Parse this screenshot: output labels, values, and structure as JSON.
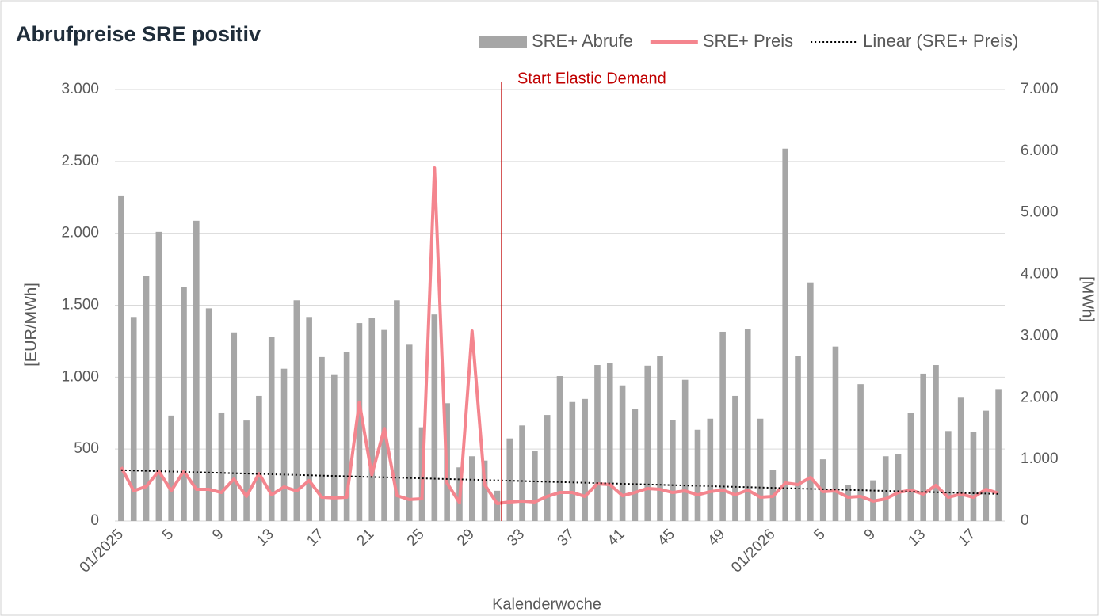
{
  "chart_data": {
    "type": "bar-line",
    "title": "Abrufpreise SRE positiv",
    "x_label": "Kalenderwoche",
    "y_label": "[EUR/MWh]",
    "y2_label": "[MWh]",
    "annotation": "Start Elastic Demand",
    "categories": [
      "01/2025",
      null,
      null,
      null,
      "5",
      null,
      null,
      null,
      "9",
      null,
      null,
      null,
      "13",
      null,
      null,
      null,
      "17",
      null,
      null,
      null,
      "21",
      null,
      null,
      null,
      "25",
      null,
      null,
      null,
      "29",
      null,
      null,
      null,
      "33",
      null,
      null,
      null,
      "37",
      null,
      null,
      null,
      "41",
      null,
      null,
      null,
      "45",
      null,
      null,
      null,
      "49",
      null,
      null,
      null,
      "01/2026",
      null,
      null,
      null,
      "5",
      null,
      null,
      null,
      "9",
      null,
      null,
      null,
      "13",
      null,
      null,
      null,
      "17",
      null,
      null
    ],
    "series": [
      {
        "name": "SRE+ Abrufe",
        "type": "bar",
        "axis": "y2",
        "color": "#a6a6a6",
        "values": [
          5280,
          3310,
          3980,
          4690,
          1710,
          3790,
          4870,
          3450,
          1760,
          3060,
          1630,
          2030,
          2990,
          2470,
          3580,
          3310,
          2660,
          2380,
          2740,
          3210,
          3300,
          3100,
          3580,
          2860,
          1520,
          3350,
          1910,
          870,
          1050,
          980,
          490,
          1340,
          1550,
          1130,
          1720,
          2350,
          1930,
          1980,
          2530,
          2560,
          2200,
          1820,
          2520,
          2680,
          1640,
          2290,
          1480,
          1660,
          3070,
          2030,
          3110,
          1660,
          830,
          6040,
          2680,
          3870,
          1000,
          2830,
          590,
          2220,
          660,
          1050,
          1080,
          1750,
          2390,
          2530,
          1460,
          2000,
          1440,
          1790,
          2140
        ]
      },
      {
        "name": "SRE+ Preis",
        "type": "line",
        "color": "#f4858e",
        "values": [
          374,
          210,
          240,
          347,
          210,
          347,
          220,
          220,
          198,
          292,
          171,
          330,
          182,
          237,
          209,
          281,
          165,
          160,
          165,
          826,
          320,
          644,
          176,
          149,
          154,
          2455,
          264,
          127,
          1321,
          253,
          121,
          132,
          138,
          132,
          171,
          198,
          198,
          171,
          259,
          253,
          176,
          198,
          226,
          220,
          198,
          209,
          182,
          204,
          215,
          182,
          215,
          165,
          171,
          264,
          253,
          303,
          204,
          209,
          165,
          171,
          138,
          154,
          198,
          215,
          187,
          248,
          165,
          187,
          165,
          220,
          193
        ]
      }
    ],
    "trendline": {
      "name": "Linear (SRE+ Preis)",
      "color": "#000000"
    },
    "ylim": [
      0,
      3000
    ],
    "yticks": [
      0,
      500,
      {
        "value": 1000,
        "label": "1.000"
      },
      {
        "value": 1500,
        "label": "1.500"
      },
      {
        "value": 2000,
        "label": "2.000"
      },
      {
        "value": 2500,
        "label": "2.500"
      },
      {
        "value": 3000,
        "label": "3.000"
      }
    ],
    "y2lim": [
      0,
      7000
    ],
    "y2ticks": [
      0,
      {
        "value": 1000,
        "label": "1.000"
      },
      {
        "value": 2000,
        "label": "2.000"
      },
      {
        "value": 3000,
        "label": "3.000"
      },
      {
        "value": 4000,
        "label": "4.000"
      },
      {
        "value": 5000,
        "label": "5.000"
      },
      {
        "value": 6000,
        "label": "6.000"
      },
      {
        "value": 7000,
        "label": "7.000"
      }
    ],
    "grid": true
  }
}
